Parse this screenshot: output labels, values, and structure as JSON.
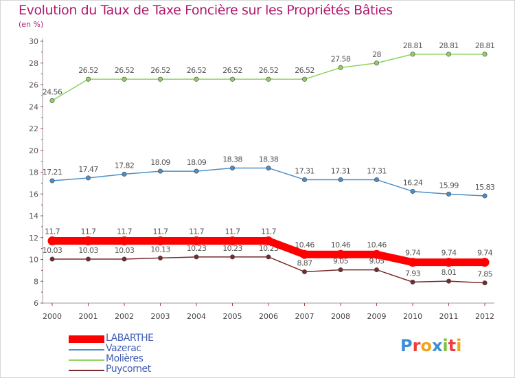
{
  "chart_data": {
    "type": "line",
    "title": "Evolution du Taux de Taxe Foncière sur les Propriétés Bâties",
    "subtitle": "(en %)",
    "categories": [
      "2000",
      "2001",
      "2002",
      "2003",
      "2004",
      "2005",
      "2006",
      "2007",
      "2008",
      "2009",
      "2010",
      "2011",
      "2012"
    ],
    "ylim": [
      6,
      30
    ],
    "yticks": [
      6,
      8,
      10,
      12,
      14,
      16,
      18,
      20,
      22,
      24,
      26,
      28,
      30
    ],
    "grid": false,
    "legend_position": "bottom-left",
    "series": [
      {
        "name": "LABARTHE",
        "color": "#ff0000",
        "emphasis": true,
        "values": [
          11.7,
          11.7,
          11.7,
          11.7,
          11.7,
          11.7,
          11.7,
          10.46,
          10.46,
          10.46,
          9.74,
          9.74,
          9.74
        ],
        "labels": [
          "11.7",
          "11.7",
          "11.7",
          "11.7",
          "11.7",
          "11.7",
          "11.7",
          "10.46",
          "10.46",
          "10.46",
          "9.74",
          "9.74",
          "9.74"
        ]
      },
      {
        "name": "Vazerac",
        "color": "#4b8fc8",
        "values": [
          17.21,
          17.47,
          17.82,
          18.09,
          18.09,
          18.38,
          18.38,
          17.31,
          17.31,
          17.31,
          16.24,
          15.99,
          15.83
        ],
        "labels": [
          "17.21",
          "17.47",
          "17.82",
          "18.09",
          "18.09",
          "18.38",
          "18.38",
          "17.31",
          "17.31",
          "17.31",
          "16.24",
          "15.99",
          "15.83"
        ]
      },
      {
        "name": "Molières",
        "color": "#8fd35f",
        "values": [
          24.56,
          26.52,
          26.52,
          26.52,
          26.52,
          26.52,
          26.52,
          26.52,
          27.58,
          28,
          28.81,
          28.81,
          28.81
        ],
        "labels": [
          "24.56",
          "26.52",
          "26.52",
          "26.52",
          "26.52",
          "26.52",
          "26.52",
          "26.52",
          "27.58",
          "28",
          "28.81",
          "28.81",
          "28.81"
        ]
      },
      {
        "name": "Puycornet",
        "color": "#7a2a2a",
        "values": [
          10.03,
          10.03,
          10.03,
          10.13,
          10.23,
          10.23,
          10.23,
          8.87,
          9.05,
          9.05,
          7.93,
          8.01,
          7.85
        ],
        "labels": [
          "10.03",
          "10.03",
          "10.03",
          "10.13",
          "10.23",
          "10.23",
          "10.23",
          "8.87",
          "9.05",
          "9.05",
          "7.93",
          "8.01",
          "7.85"
        ]
      }
    ]
  },
  "logo": {
    "letters": [
      "P",
      "r",
      "o",
      "x",
      "i",
      "t",
      "i"
    ],
    "colors": [
      "#3c8ed6",
      "#e83f3f",
      "#f2a31a",
      "#3c8ed6",
      "#7fbf3a",
      "#e83f3f",
      "#f2a31a"
    ]
  }
}
